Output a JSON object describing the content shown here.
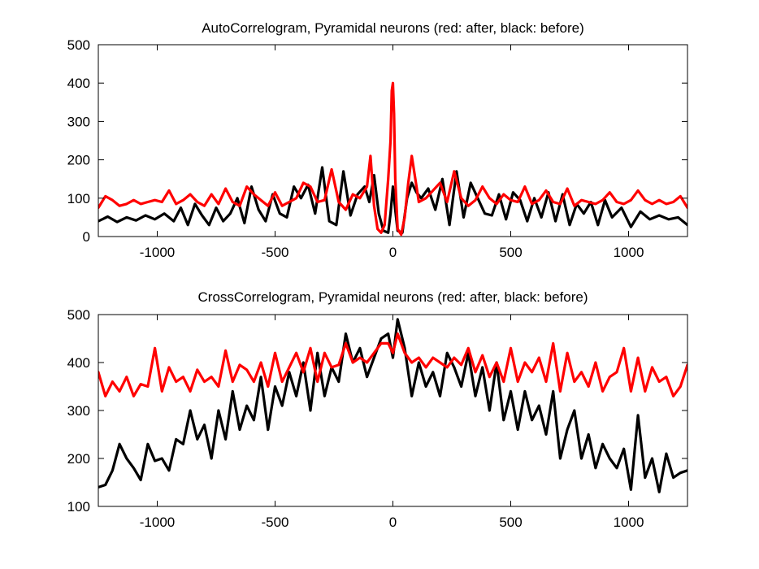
{
  "chart_data": [
    {
      "type": "line",
      "title": "AutoCorrelogram, Pyramidal neurons (red: after, black: before)",
      "xlabel": "",
      "ylabel": "",
      "xlim": [
        -1250,
        1250
      ],
      "ylim": [
        0,
        500
      ],
      "xticks": [
        -1000,
        -500,
        0,
        500,
        1000
      ],
      "yticks": [
        0,
        100,
        200,
        300,
        400,
        500
      ],
      "grid": false,
      "series": [
        {
          "color": "#000000",
          "x": [
            -1250,
            -1210,
            -1170,
            -1130,
            -1090,
            -1050,
            -1010,
            -970,
            -930,
            -900,
            -870,
            -840,
            -810,
            -780,
            -750,
            -720,
            -690,
            -660,
            -630,
            -600,
            -570,
            -540,
            -510,
            -480,
            -450,
            -420,
            -390,
            -360,
            -330,
            -300,
            -270,
            -240,
            -210,
            -180,
            -150,
            -120,
            -100,
            -80,
            -60,
            -40,
            -20,
            -10,
            0,
            10,
            20,
            40,
            60,
            80,
            100,
            120,
            150,
            180,
            210,
            240,
            270,
            300,
            330,
            360,
            390,
            420,
            450,
            480,
            510,
            540,
            570,
            600,
            630,
            660,
            690,
            720,
            750,
            780,
            810,
            840,
            870,
            900,
            930,
            970,
            1010,
            1050,
            1090,
            1130,
            1170,
            1210,
            1250
          ],
          "y": [
            40,
            52,
            38,
            50,
            42,
            55,
            45,
            60,
            40,
            75,
            30,
            85,
            55,
            30,
            75,
            40,
            60,
            100,
            35,
            130,
            70,
            40,
            110,
            60,
            50,
            130,
            100,
            135,
            60,
            180,
            40,
            30,
            170,
            55,
            110,
            130,
            90,
            160,
            60,
            15,
            10,
            60,
            130,
            70,
            15,
            10,
            100,
            140,
            115,
            100,
            125,
            70,
            150,
            30,
            170,
            50,
            140,
            100,
            60,
            55,
            110,
            45,
            115,
            95,
            40,
            100,
            50,
            115,
            40,
            110,
            30,
            85,
            60,
            90,
            30,
            95,
            50,
            75,
            25,
            65,
            45,
            55,
            45,
            50,
            30
          ]
        },
        {
          "color": "#ff0000",
          "x": [
            -1250,
            -1220,
            -1190,
            -1160,
            -1130,
            -1100,
            -1070,
            -1040,
            -1010,
            -980,
            -950,
            -920,
            -890,
            -860,
            -830,
            -800,
            -770,
            -740,
            -710,
            -680,
            -650,
            -620,
            -590,
            -560,
            -530,
            -500,
            -470,
            -440,
            -410,
            -380,
            -350,
            -320,
            -290,
            -260,
            -230,
            -200,
            -170,
            -140,
            -110,
            -95,
            -80,
            -65,
            -50,
            -35,
            -20,
            -10,
            -5,
            0,
            5,
            10,
            20,
            35,
            50,
            65,
            80,
            95,
            110,
            140,
            170,
            200,
            230,
            260,
            290,
            320,
            350,
            380,
            410,
            440,
            470,
            500,
            530,
            560,
            590,
            620,
            650,
            680,
            710,
            740,
            770,
            800,
            830,
            860,
            890,
            920,
            950,
            980,
            1010,
            1040,
            1070,
            1100,
            1130,
            1160,
            1190,
            1220,
            1250
          ],
          "y": [
            75,
            105,
            95,
            80,
            85,
            95,
            85,
            90,
            95,
            90,
            120,
            85,
            95,
            110,
            90,
            80,
            110,
            85,
            125,
            90,
            80,
            130,
            110,
            95,
            80,
            115,
            80,
            90,
            100,
            140,
            130,
            90,
            95,
            175,
            90,
            70,
            110,
            100,
            130,
            210,
            80,
            20,
            10,
            30,
            150,
            250,
            380,
            400,
            320,
            150,
            20,
            5,
            50,
            140,
            210,
            150,
            90,
            100,
            120,
            140,
            90,
            170,
            100,
            80,
            95,
            130,
            100,
            85,
            110,
            95,
            90,
            130,
            85,
            95,
            120,
            90,
            85,
            125,
            80,
            95,
            90,
            85,
            95,
            115,
            90,
            85,
            95,
            120,
            95,
            85,
            95,
            85,
            90,
            105,
            75
          ]
        }
      ]
    },
    {
      "type": "line",
      "title": "CrossCorrelogram, Pyramidal neurons (red: after, black: before)",
      "xlabel": "",
      "ylabel": "",
      "xlim": [
        -1250,
        1250
      ],
      "ylim": [
        100,
        500
      ],
      "xticks": [
        -1000,
        -500,
        0,
        500,
        1000
      ],
      "yticks": [
        100,
        200,
        300,
        400,
        500
      ],
      "grid": false,
      "series": [
        {
          "color": "#000000",
          "x": [
            -1250,
            -1220,
            -1190,
            -1160,
            -1130,
            -1100,
            -1070,
            -1040,
            -1010,
            -980,
            -950,
            -920,
            -890,
            -860,
            -830,
            -800,
            -770,
            -740,
            -710,
            -680,
            -650,
            -620,
            -590,
            -560,
            -530,
            -500,
            -470,
            -440,
            -410,
            -380,
            -350,
            -320,
            -290,
            -260,
            -230,
            -200,
            -170,
            -140,
            -110,
            -80,
            -50,
            -20,
            0,
            20,
            50,
            80,
            110,
            140,
            170,
            200,
            230,
            260,
            290,
            320,
            350,
            380,
            410,
            440,
            470,
            500,
            530,
            560,
            590,
            620,
            650,
            680,
            710,
            740,
            770,
            800,
            830,
            860,
            890,
            920,
            950,
            980,
            1010,
            1040,
            1070,
            1100,
            1130,
            1160,
            1190,
            1220,
            1250
          ],
          "y": [
            140,
            145,
            175,
            230,
            200,
            180,
            155,
            230,
            195,
            200,
            175,
            240,
            230,
            300,
            240,
            270,
            200,
            300,
            240,
            340,
            260,
            310,
            280,
            370,
            260,
            350,
            310,
            380,
            330,
            400,
            300,
            420,
            330,
            390,
            360,
            460,
            400,
            430,
            370,
            410,
            450,
            460,
            410,
            490,
            430,
            330,
            400,
            350,
            380,
            330,
            420,
            390,
            350,
            420,
            330,
            390,
            300,
            400,
            280,
            340,
            260,
            340,
            280,
            310,
            250,
            340,
            200,
            260,
            300,
            200,
            250,
            180,
            230,
            200,
            180,
            220,
            135,
            290,
            160,
            200,
            130,
            210,
            160,
            170,
            175
          ]
        },
        {
          "color": "#ff0000",
          "x": [
            -1250,
            -1220,
            -1190,
            -1160,
            -1130,
            -1100,
            -1070,
            -1040,
            -1010,
            -980,
            -950,
            -920,
            -890,
            -860,
            -830,
            -800,
            -770,
            -740,
            -710,
            -680,
            -650,
            -620,
            -590,
            -560,
            -530,
            -500,
            -470,
            -440,
            -410,
            -380,
            -350,
            -320,
            -290,
            -260,
            -230,
            -200,
            -170,
            -140,
            -110,
            -80,
            -50,
            -20,
            0,
            20,
            50,
            80,
            110,
            140,
            170,
            200,
            230,
            260,
            290,
            320,
            350,
            380,
            410,
            440,
            470,
            500,
            530,
            560,
            590,
            620,
            650,
            680,
            710,
            740,
            770,
            800,
            830,
            860,
            890,
            920,
            950,
            980,
            1010,
            1040,
            1070,
            1100,
            1130,
            1160,
            1190,
            1220,
            1250
          ],
          "y": [
            380,
            330,
            360,
            340,
            370,
            330,
            355,
            350,
            430,
            340,
            390,
            360,
            370,
            340,
            385,
            360,
            370,
            350,
            425,
            360,
            395,
            385,
            360,
            400,
            350,
            420,
            360,
            390,
            420,
            380,
            430,
            360,
            420,
            390,
            395,
            440,
            400,
            410,
            400,
            420,
            440,
            440,
            420,
            460,
            420,
            400,
            410,
            390,
            410,
            400,
            390,
            410,
            395,
            430,
            380,
            415,
            370,
            400,
            360,
            430,
            360,
            400,
            380,
            410,
            360,
            440,
            340,
            420,
            360,
            380,
            350,
            400,
            340,
            370,
            380,
            430,
            340,
            410,
            340,
            390,
            360,
            370,
            330,
            350,
            395
          ]
        }
      ]
    }
  ]
}
